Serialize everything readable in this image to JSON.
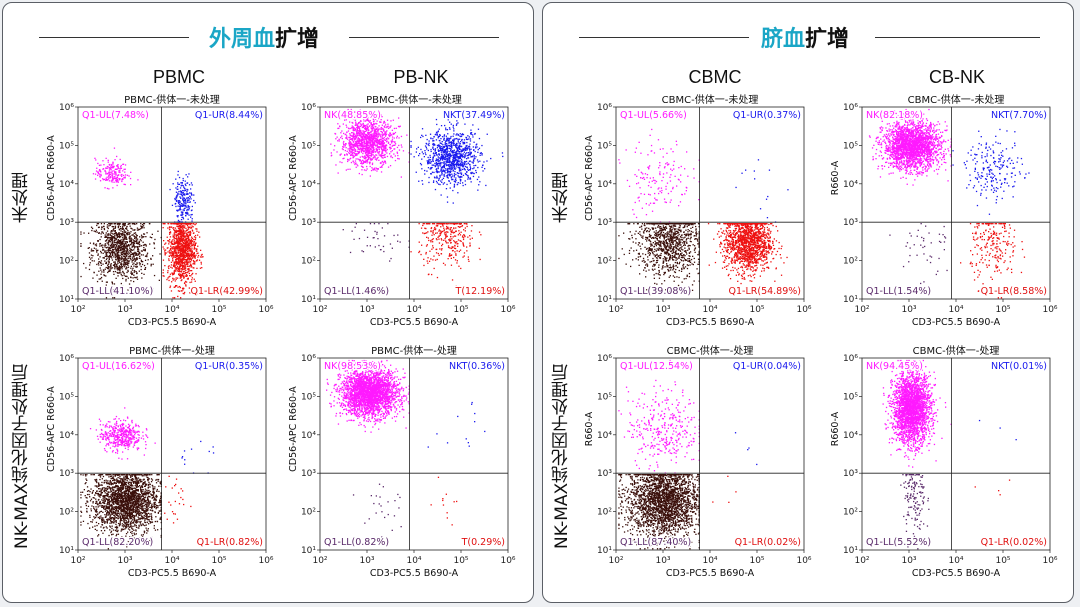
{
  "sections": [
    {
      "title_colored": "外周血",
      "title_rest": "扩增",
      "accent": "#1aa6c6",
      "columns": [
        "PBMC",
        "PB-NK"
      ],
      "rows": [
        "未处理",
        "NK-MAX纯化因子处理后"
      ]
    },
    {
      "title_colored": "脐血",
      "title_rest": "扩增",
      "accent": "#1aa6c6",
      "columns": [
        "CBMC",
        "CB-NK"
      ],
      "rows": [
        "未处理",
        "NK-MAX纯化因子处理后"
      ]
    }
  ],
  "chart_data": [
    {
      "type": "scatter",
      "title": "PBMC-供体一-未处理",
      "xlabel": "CD3-PC5.5 B690-A",
      "ylabel": "CD56-APC R660-A",
      "quadrants": {
        "UL": "Q1-UL(7.48%)",
        "UR": "Q1-UR(8.44%)",
        "LL": "Q1-LL(41.10%)",
        "LR": "Q1-LR(42.99%)"
      },
      "quadrant_values": {
        "UL": 7.48,
        "UR": 8.44,
        "LL": 41.1,
        "LR": 42.99
      },
      "gate": [
        6000,
        1000
      ],
      "xlim": [
        100,
        1000000
      ],
      "ylim": [
        10,
        1000000
      ]
    },
    {
      "type": "scatter",
      "title": "PBMC-供体一-未处理",
      "xlabel": "CD3-PC5.5 B690-A",
      "ylabel": "CD56-APC R660-A",
      "quadrants": {
        "UL": "NK(48.85%)",
        "UR": "NKT(37.49%)",
        "LL": "Q1-LL(1.46%)",
        "LR": "T(12.19%)"
      },
      "quadrant_values": {
        "UL": 48.85,
        "UR": 37.49,
        "LL": 1.46,
        "LR": 12.19
      },
      "gate": [
        8000,
        1000
      ],
      "xlim": [
        100,
        1000000
      ],
      "ylim": [
        10,
        1000000
      ]
    },
    {
      "type": "scatter",
      "title": "PBMC-供体一-处理",
      "xlabel": "CD3-PC5.5 B690-A",
      "ylabel": "CD56-APC R660-A",
      "quadrants": {
        "UL": "Q1-UL(16.62%)",
        "UR": "Q1-UR(0.35%)",
        "LL": "Q1-LL(82.20%)",
        "LR": "Q1-LR(0.82%)"
      },
      "quadrant_values": {
        "UL": 16.62,
        "UR": 0.35,
        "LL": 82.2,
        "LR": 0.82
      },
      "gate": [
        6000,
        1000
      ],
      "xlim": [
        100,
        1000000
      ],
      "ylim": [
        10,
        1000000
      ]
    },
    {
      "type": "scatter",
      "title": "PBMC-供体一-处理",
      "xlabel": "CD3-PC5.5 B690-A",
      "ylabel": "CD56-APC R660-A",
      "quadrants": {
        "UL": "NK(98.53%)",
        "UR": "NKT(0.36%)",
        "LL": "Q1-LL(0.82%)",
        "LR": "T(0.29%)"
      },
      "quadrant_values": {
        "UL": 98.53,
        "UR": 0.36,
        "LL": 0.82,
        "LR": 0.29
      },
      "gate": [
        8000,
        1000
      ],
      "xlim": [
        100,
        1000000
      ],
      "ylim": [
        10,
        1000000
      ]
    },
    {
      "type": "scatter",
      "title": "CBMC-供体一-未处理",
      "xlabel": "CD3-PC5.5 B690-A",
      "ylabel": "CD56-APC R660-A",
      "quadrants": {
        "UL": "Q1-UL(5.66%)",
        "UR": "Q1-UR(0.37%)",
        "LL": "Q1-LL(39.08%)",
        "LR": "Q1-LR(54.89%)"
      },
      "quadrant_values": {
        "UL": 5.66,
        "UR": 0.37,
        "LL": 39.08,
        "LR": 54.89
      },
      "gate": [
        6000,
        1000
      ],
      "xlim": [
        100,
        1000000
      ],
      "ylim": [
        10,
        1000000
      ]
    },
    {
      "type": "scatter",
      "title": "CBMC-供体一-未处理",
      "xlabel": "CD3-PC5.5 B690-A",
      "ylabel": "R660-A",
      "quadrants": {
        "UL": "NK(82.18%)",
        "UR": "NKT(7.70%)",
        "LL": "Q1-LL(1.54%)",
        "LR": "Q1-LR(8.58%)"
      },
      "quadrant_values": {
        "UL": 82.18,
        "UR": 7.7,
        "LL": 1.54,
        "LR": 8.58
      },
      "gate": [
        8000,
        1000
      ],
      "xlim": [
        100,
        1000000
      ],
      "ylim": [
        10,
        1000000
      ]
    },
    {
      "type": "scatter",
      "title": "CBMC-供体一-处理",
      "xlabel": "CD3-PC5.5 B690-A",
      "ylabel": "R660-A",
      "quadrants": {
        "UL": "Q1-UL(12.54%)",
        "UR": "Q1-UR(0.04%)",
        "LL": "Q1-LL(87.40%)",
        "LR": "Q1-LR(0.02%)"
      },
      "quadrant_values": {
        "UL": 12.54,
        "UR": 0.04,
        "LL": 87.4,
        "LR": 0.02
      },
      "gate": [
        6000,
        1000
      ],
      "xlim": [
        100,
        1000000
      ],
      "ylim": [
        10,
        1000000
      ]
    },
    {
      "type": "scatter",
      "title": "CBMC-供体一-处理",
      "xlabel": "CD3-PC5.5 B690-A",
      "ylabel": "R660-A",
      "quadrants": {
        "UL": "NK(94.45%)",
        "UR": "NKT(0.01%)",
        "LL": "Q1-LL(5.52%)",
        "LR": "Q1-LR(0.02%)"
      },
      "quadrant_values": {
        "UL": 94.45,
        "UR": 0.01,
        "LL": 5.52,
        "LR": 0.02
      },
      "gate": [
        8000,
        1000
      ],
      "xlim": [
        100,
        1000000
      ],
      "ylim": [
        10,
        1000000
      ]
    }
  ],
  "xticks": [
    "10²",
    "10³",
    "10⁴",
    "10⁵",
    "10⁶"
  ],
  "yticks": [
    "10¹",
    "10²",
    "10³",
    "10⁴",
    "10⁵",
    "10⁶"
  ],
  "colors": {
    "UL": "#ff1aff",
    "UR": "#1a1aee",
    "LL": "#3a0f0a",
    "LR": "#ee1111",
    "LL_nk": "#5a2a6a",
    "label_ll": "#5a2a6a",
    "label_lr": "#e01010"
  }
}
